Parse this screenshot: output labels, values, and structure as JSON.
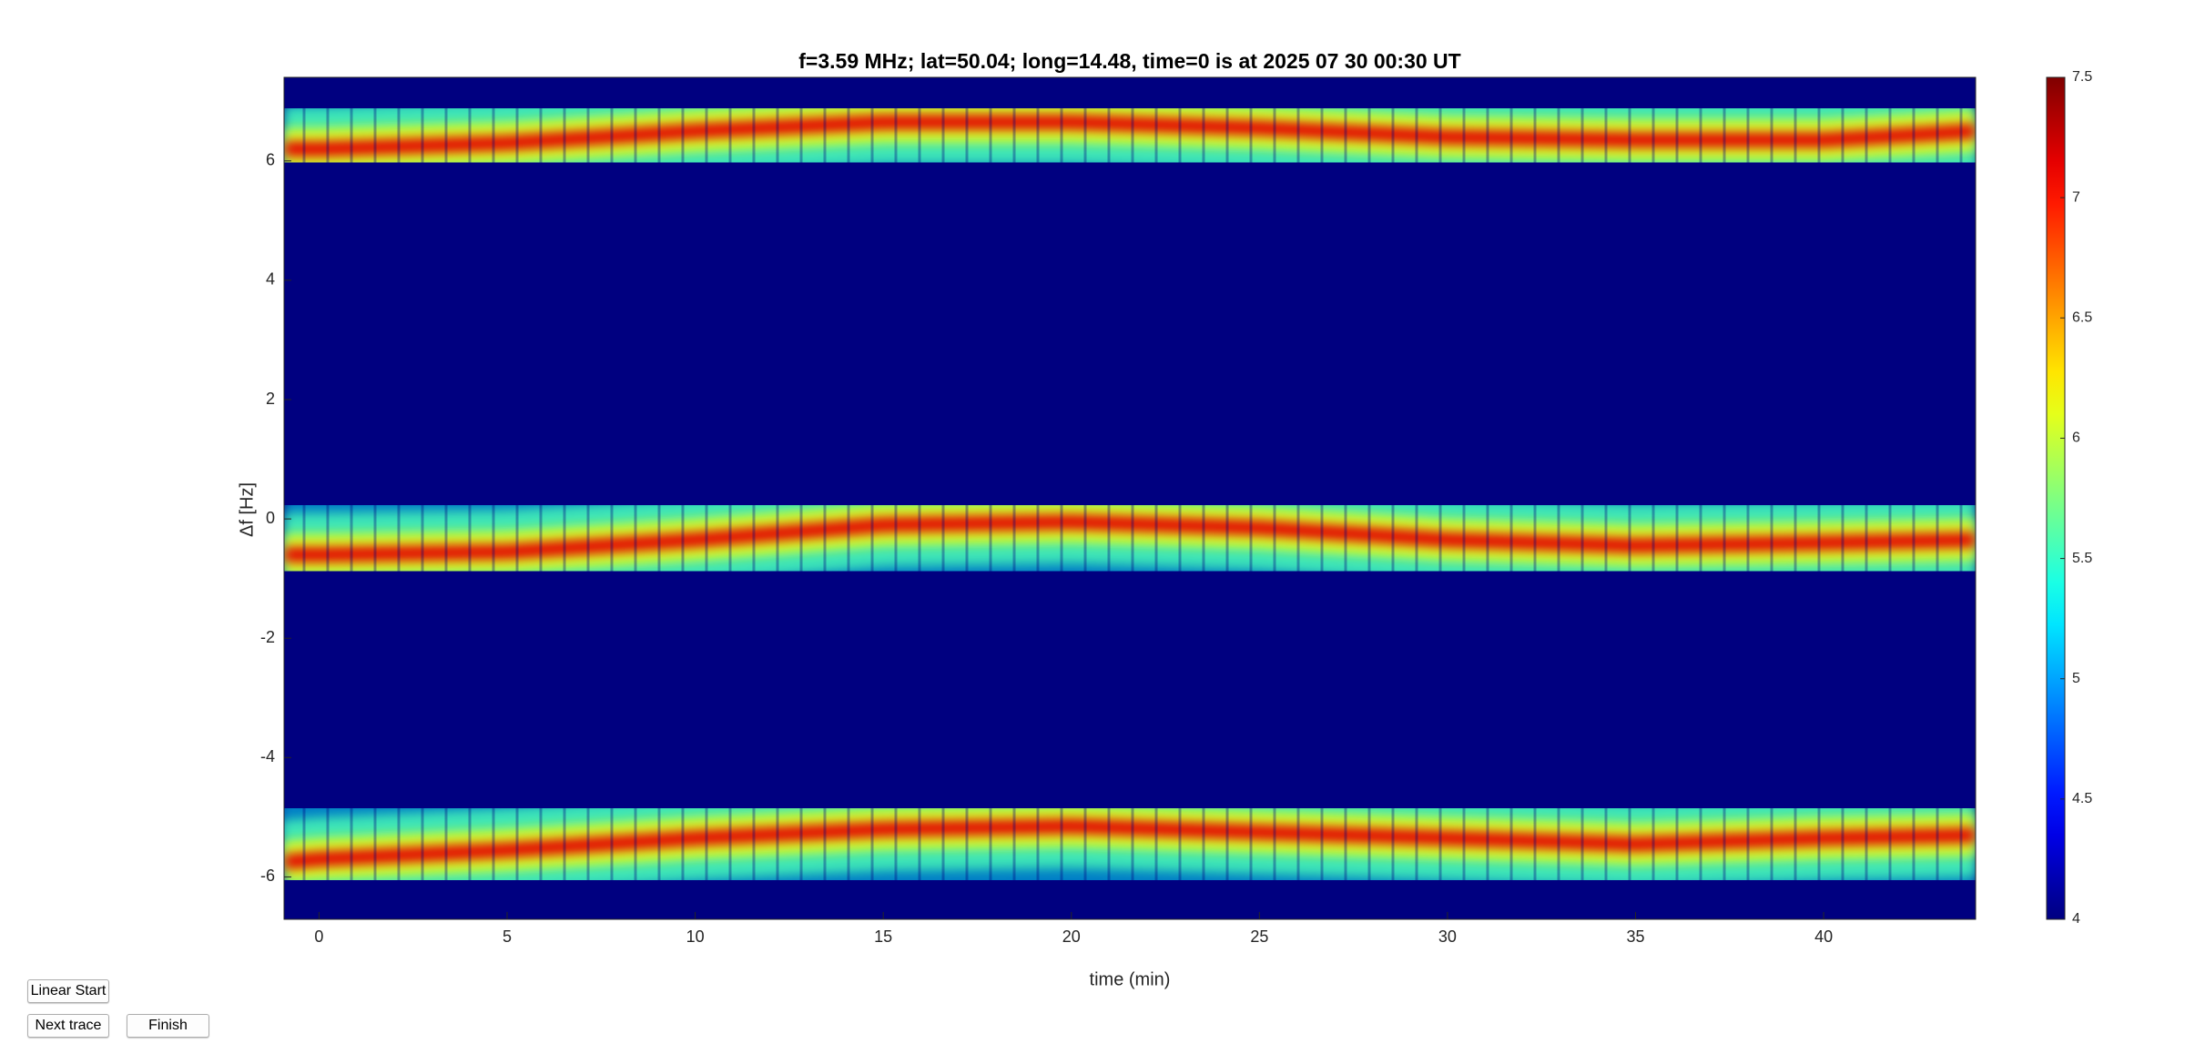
{
  "chart_data": {
    "type": "spectrogram",
    "title": "f=3.59 MHz;  lat=50.04; long=14.48, time=0 is at 2025 07 30 00:30 UT",
    "xlabel": "time (min)",
    "ylabel": "Δf [Hz]",
    "xlim": [
      -0.93,
      44.04
    ],
    "xticks": [
      0,
      5,
      10,
      15,
      20,
      25,
      30,
      35,
      40
    ],
    "ylim": [
      -6.71,
      7.4
    ],
    "yticks": [
      -6,
      -4,
      -2,
      0,
      2,
      4,
      6
    ],
    "clim": [
      4,
      7.5
    ],
    "cticks": [
      4,
      4.5,
      5,
      5.5,
      6,
      6.5,
      7,
      7.5
    ],
    "colormap": "jet",
    "x": [
      -0.93,
      0,
      5,
      10,
      15,
      20,
      25,
      30,
      35,
      40,
      44.04
    ],
    "series": [
      {
        "values": [
          6.2,
          6.2,
          6.3,
          6.5,
          6.65,
          6.65,
          6.55,
          6.4,
          6.35,
          6.35,
          6.5
        ]
      },
      {
        "values": [
          -0.6,
          -0.6,
          -0.55,
          -0.35,
          -0.1,
          -0.05,
          -0.15,
          -0.35,
          -0.45,
          -0.4,
          -0.35
        ]
      },
      {
        "values": [
          -5.75,
          -5.7,
          -5.55,
          -5.35,
          -5.2,
          -5.15,
          -5.25,
          -5.35,
          -5.45,
          -5.35,
          -5.3
        ]
      }
    ]
  },
  "buttons": [
    "Linear Start",
    "Next trace",
    "Finish"
  ]
}
